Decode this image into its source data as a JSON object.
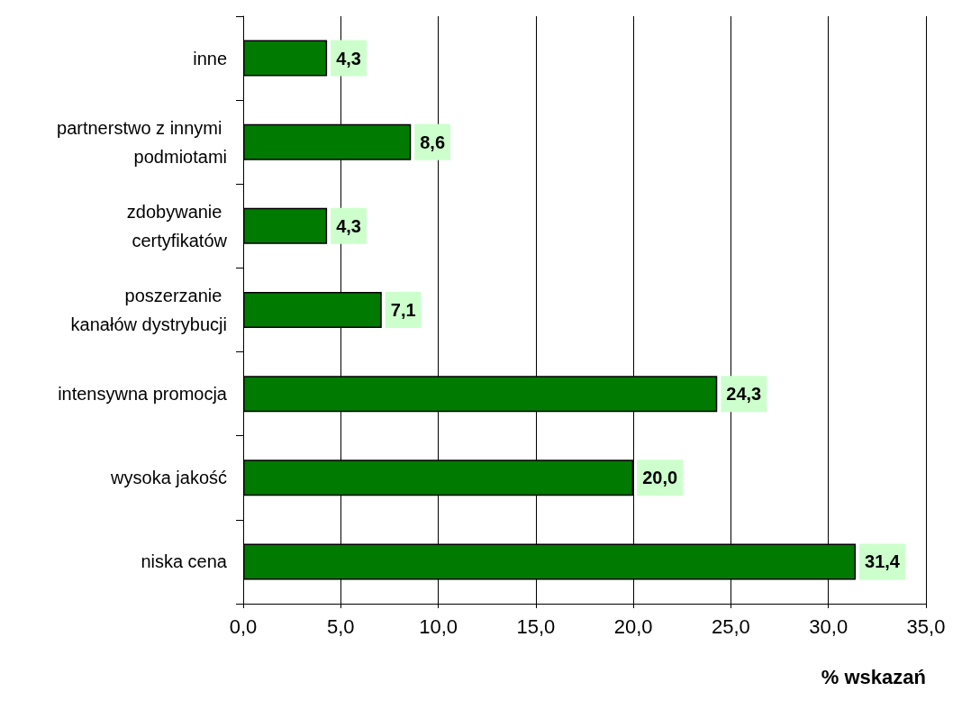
{
  "chart_data": {
    "type": "bar",
    "orientation": "horizontal",
    "xlabel": "% wskazań",
    "categories": [
      "inne",
      "partnerstwo z innymi podmiotami",
      "zdobywanie certyfikatów",
      "poszerzanie kanałów dystrybucji",
      "intensywna promocja",
      "wysoka jakość",
      "niska cena"
    ],
    "values": [
      4.3,
      8.6,
      4.3,
      7.1,
      24.3,
      20.0,
      31.4
    ],
    "value_labels": [
      "4,3",
      "8,6",
      "4,3",
      "7,1",
      "24,3",
      "20,0",
      "31,4"
    ],
    "color": "#007a00",
    "xlim": [
      0,
      35
    ],
    "xticks": [
      {
        "value": 0,
        "label": "0,0"
      },
      {
        "value": 5,
        "label": "5,0"
      },
      {
        "value": 10,
        "label": "10,0"
      },
      {
        "value": 15,
        "label": "15,0"
      },
      {
        "value": 20,
        "label": "20,0"
      },
      {
        "value": 25,
        "label": "25,0"
      },
      {
        "value": 30,
        "label": "30,0"
      },
      {
        "value": 35,
        "label": "35,0"
      }
    ],
    "grid": "x"
  }
}
